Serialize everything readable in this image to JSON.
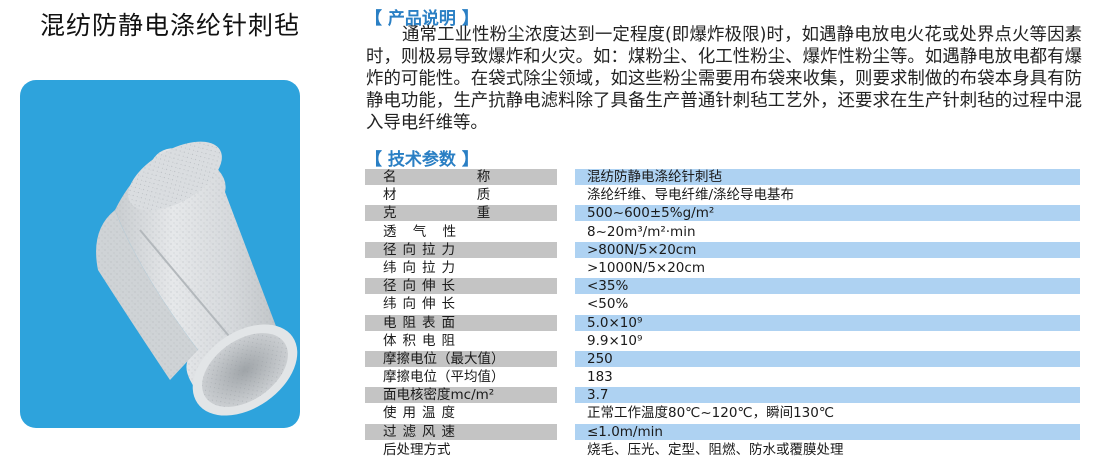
{
  "product_title": "混纺防静电涤纶针刺毡",
  "sections": {
    "intro_heading": "【 产品说明 】",
    "params_heading": "【 技术参数 】"
  },
  "description": "通常工业性粉尘浓度达到一定程度(即爆炸极限)时，如遇静电放电火花或处界点火等因素时，则极易导致爆炸和火灾。如：煤粉尘、化工性粉尘、爆炸性粉尘等。如遇静电放电都有爆炸的可能性。在袋式除尘领域，如这些粉尘需要用布袋来收集，则要求制做的布袋本身具有防静电功能，生产抗静电滤料除了具备生产普通针刺毡工艺外，还要求在生产针刺毡的过程中混入导电纤维等。",
  "specs": [
    {
      "label": "名 称",
      "value": "混纺防静电涤纶针刺毡"
    },
    {
      "label": "材 质",
      "value": "涤纶纤维、导电纤维/涤纶导电基布"
    },
    {
      "label": "克 重",
      "value": "500~600±5%g/m²"
    },
    {
      "label": "透 气 性",
      "value": "8~20m³/m²·min"
    },
    {
      "label": "径向拉力",
      "value": ">800N/5×20cm"
    },
    {
      "label": "纬向拉力",
      "value": ">1000N/5×20cm"
    },
    {
      "label": "径向伸长",
      "value": "<35%"
    },
    {
      "label": "纬向伸长",
      "value": "<50%"
    },
    {
      "label": "电阻表面",
      "value": "5.0×10⁹"
    },
    {
      "label": "体积电阻",
      "value": "9.9×10⁹"
    },
    {
      "label": "摩擦电位（最大值）",
      "value": "250"
    },
    {
      "label": "摩擦电位（平均值）",
      "value": "183"
    },
    {
      "label": "面电核密度mc/m²",
      "value": "3.7"
    },
    {
      "label": "使用温度",
      "value": "正常工作温度80℃~120℃，瞬间130℃"
    },
    {
      "label": "过滤风速",
      "value": "≤1.0m/min"
    },
    {
      "label": "后处理方式",
      "value": "烧毛、压光、定型、阻燃、防水或覆膜处理"
    }
  ],
  "colors": {
    "photo_background": "#2ea3dc",
    "heading": "#2a7fc4",
    "label_band": "#c4c4c4",
    "value_band": "#aed2f2"
  }
}
